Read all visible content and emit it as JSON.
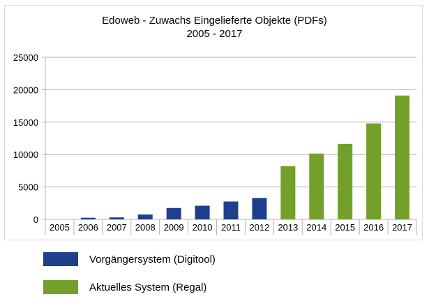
{
  "chart_data": {
    "type": "bar",
    "title": "Edoweb - Zuwachs Eingelieferte Objekte (PDFs)",
    "subtitle": "2005 - 2017",
    "categories": [
      "2005",
      "2006",
      "2007",
      "2008",
      "2009",
      "2010",
      "2011",
      "2012",
      "2013",
      "2014",
      "2015",
      "2016",
      "2017"
    ],
    "values": [
      0,
      250,
      300,
      750,
      1750,
      2100,
      2750,
      3300,
      8200,
      10150,
      11650,
      14800,
      19100
    ],
    "series": [
      {
        "name": "Vorgängersystem (Digitool)",
        "color": "#1f3f8a",
        "categories": [
          "2005",
          "2006",
          "2007",
          "2008",
          "2009",
          "2010",
          "2011",
          "2012"
        ]
      },
      {
        "name": "Aktuelles System (Regal)",
        "color": "#72a02a",
        "categories": [
          "2013",
          "2014",
          "2015",
          "2016",
          "2017"
        ]
      }
    ],
    "ylim": [
      0,
      25000
    ],
    "yticks": [
      0,
      5000,
      10000,
      15000,
      20000,
      25000
    ],
    "grid": true,
    "legend_position": "bottom-left"
  }
}
